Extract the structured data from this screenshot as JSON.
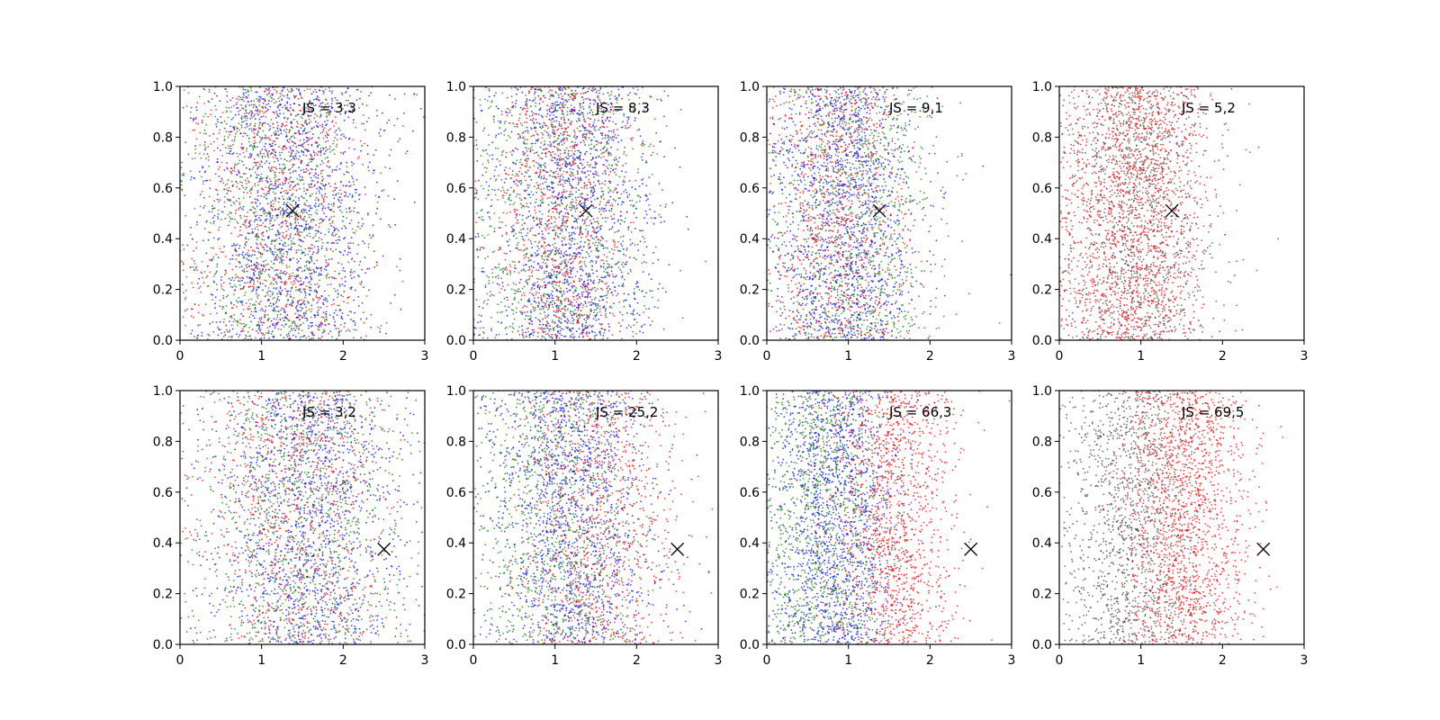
{
  "marker_color": "#000000",
  "chart_data": [
    {
      "type": "scatter",
      "annotation": "JS = 3,3",
      "marker": {
        "x": 1.38,
        "y": 0.51
      },
      "xlim": [
        0,
        3
      ],
      "ylim": [
        0,
        1.0
      ],
      "xticks": [
        "0",
        "1",
        "2",
        "3"
      ],
      "yticks": [
        "0.0",
        "0.2",
        "0.4",
        "0.6",
        "0.8",
        "1.0"
      ],
      "series": [
        {
          "color": "#0000ff",
          "mean": 1.35,
          "sd": 0.55,
          "count": 1500
        },
        {
          "color": "#008000",
          "mean": 1.15,
          "sd": 0.55,
          "count": 900
        },
        {
          "color": "#ff0000",
          "mean": 1.2,
          "sd": 0.55,
          "count": 900
        }
      ]
    },
    {
      "type": "scatter",
      "annotation": "JS = 8,3",
      "marker": {
        "x": 1.38,
        "y": 0.51
      },
      "xlim": [
        0,
        3
      ],
      "ylim": [
        0,
        1.0
      ],
      "xticks": [
        "0",
        "1",
        "2",
        "3"
      ],
      "yticks": [
        "0.0",
        "0.2",
        "0.4",
        "0.6",
        "0.8",
        "1.0"
      ],
      "series": [
        {
          "color": "#0000ff",
          "mean": 1.2,
          "sd": 0.5,
          "count": 1500
        },
        {
          "color": "#008000",
          "mean": 1.05,
          "sd": 0.55,
          "count": 900
        },
        {
          "color": "#ff0000",
          "mean": 1.1,
          "sd": 0.45,
          "count": 900
        }
      ]
    },
    {
      "type": "scatter",
      "annotation": "JS = 9,1",
      "marker": {
        "x": 1.38,
        "y": 0.51
      },
      "xlim": [
        0,
        3
      ],
      "ylim": [
        0,
        1.0
      ],
      "xticks": [
        "0",
        "1",
        "2",
        "3"
      ],
      "yticks": [
        "0.0",
        "0.2",
        "0.4",
        "0.6",
        "0.8",
        "1.0"
      ],
      "series": [
        {
          "color": "#0000ff",
          "mean": 0.95,
          "sd": 0.45,
          "count": 1500
        },
        {
          "color": "#008000",
          "mean": 1.1,
          "sd": 0.5,
          "count": 900
        },
        {
          "color": "#ff0000",
          "mean": 0.9,
          "sd": 0.45,
          "count": 900
        }
      ]
    },
    {
      "type": "scatter",
      "annotation": "JS = 5,2",
      "marker": {
        "x": 1.38,
        "y": 0.51
      },
      "xlim": [
        0,
        3
      ],
      "ylim": [
        0,
        1.0
      ],
      "xticks": [
        "0",
        "1",
        "2",
        "3"
      ],
      "yticks": [
        "0.0",
        "0.2",
        "0.4",
        "0.6",
        "0.8",
        "1.0"
      ],
      "series": [
        {
          "color": "#404040",
          "mean": 0.95,
          "sd": 0.45,
          "count": 1300
        },
        {
          "color": "#ff0000",
          "mean": 0.9,
          "sd": 0.45,
          "count": 1600
        }
      ]
    },
    {
      "type": "scatter",
      "annotation": "JS = 3,2",
      "marker": {
        "x": 2.5,
        "y": 0.375
      },
      "xlim": [
        0,
        3
      ],
      "ylim": [
        0,
        1.0
      ],
      "xticks": [
        "0",
        "1",
        "2",
        "3"
      ],
      "yticks": [
        "0.0",
        "0.2",
        "0.4",
        "0.6",
        "0.8",
        "1.0"
      ],
      "series": [
        {
          "color": "#0000ff",
          "mean": 1.55,
          "sd": 0.6,
          "count": 1500
        },
        {
          "color": "#008000",
          "mean": 1.4,
          "sd": 0.6,
          "count": 900
        },
        {
          "color": "#ff0000",
          "mean": 1.45,
          "sd": 0.6,
          "count": 900
        }
      ]
    },
    {
      "type": "scatter",
      "annotation": "JS = 25,2",
      "marker": {
        "x": 2.5,
        "y": 0.375
      },
      "xlim": [
        0,
        3
      ],
      "ylim": [
        0,
        1.0
      ],
      "xticks": [
        "0",
        "1",
        "2",
        "3"
      ],
      "yticks": [
        "0.0",
        "0.2",
        "0.4",
        "0.6",
        "0.8",
        "1.0"
      ],
      "series": [
        {
          "color": "#0000ff",
          "mean": 1.2,
          "sd": 0.5,
          "count": 1500
        },
        {
          "color": "#008000",
          "mean": 1.05,
          "sd": 0.5,
          "count": 900
        },
        {
          "color": "#ff0000",
          "mean": 1.5,
          "sd": 0.5,
          "count": 900
        }
      ]
    },
    {
      "type": "scatter",
      "annotation": "JS = 66,3",
      "marker": {
        "x": 2.5,
        "y": 0.375
      },
      "xlim": [
        0,
        3
      ],
      "ylim": [
        0,
        1.0
      ],
      "xticks": [
        "0",
        "1",
        "2",
        "3"
      ],
      "yticks": [
        "0.0",
        "0.2",
        "0.4",
        "0.6",
        "0.8",
        "1.0"
      ],
      "series": [
        {
          "color": "#0000ff",
          "mean": 0.85,
          "sd": 0.4,
          "count": 1500
        },
        {
          "color": "#008000",
          "mean": 0.7,
          "sd": 0.4,
          "count": 900
        },
        {
          "color": "#ff0000",
          "mean": 1.55,
          "sd": 0.4,
          "count": 1300
        }
      ]
    },
    {
      "type": "scatter",
      "annotation": "JS = 69,5",
      "marker": {
        "x": 2.5,
        "y": 0.375
      },
      "xlim": [
        0,
        3
      ],
      "ylim": [
        0,
        1.0
      ],
      "xticks": [
        "0",
        "1",
        "2",
        "3"
      ],
      "yticks": [
        "0.0",
        "0.2",
        "0.4",
        "0.6",
        "0.8",
        "1.0"
      ],
      "series": [
        {
          "color": "#404040",
          "mean": 0.85,
          "sd": 0.4,
          "count": 1300
        },
        {
          "color": "#ff0000",
          "mean": 1.55,
          "sd": 0.4,
          "count": 1600
        }
      ]
    }
  ]
}
